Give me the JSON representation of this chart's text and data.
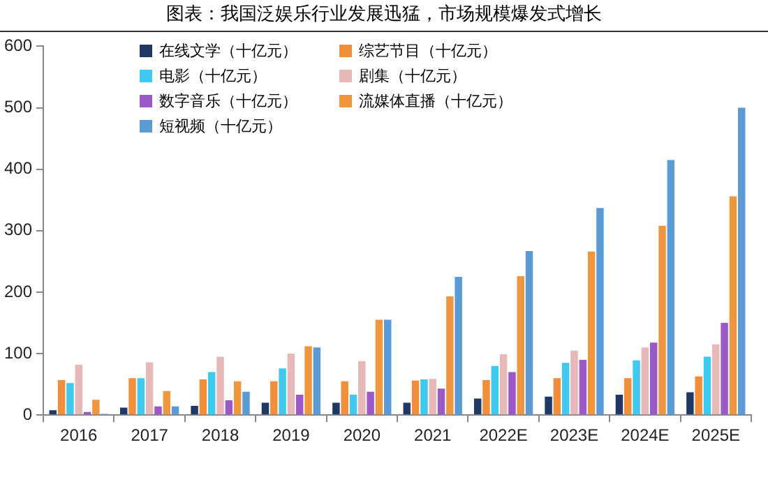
{
  "chart_data": {
    "type": "bar",
    "title": "图表：我国泛娱乐行业发展迅猛，市场规模爆发式增长",
    "categories": [
      "2016",
      "2017",
      "2018",
      "2019",
      "2020",
      "2021",
      "2022E",
      "2023E",
      "2024E",
      "2025E"
    ],
    "series": [
      {
        "name": "在线文学（十亿元）",
        "color": "#1f3864",
        "values": [
          8,
          12,
          15,
          20,
          20,
          20,
          27,
          30,
          33,
          37
        ]
      },
      {
        "name": "综艺节目（十亿元）",
        "color": "#f28e3a",
        "values": [
          57,
          60,
          58,
          55,
          55,
          56,
          57,
          60,
          60,
          63
        ]
      },
      {
        "name": "电影（十亿元）",
        "color": "#3fc8f0",
        "values": [
          52,
          60,
          70,
          76,
          33,
          58,
          80,
          85,
          89,
          95
        ]
      },
      {
        "name": "剧集（十亿元）",
        "color": "#e6b8b7",
        "values": [
          82,
          86,
          95,
          100,
          88,
          59,
          99,
          105,
          110,
          115
        ]
      },
      {
        "name": "数字音乐（十亿元）",
        "color": "#9b59c8",
        "values": [
          5,
          14,
          24,
          33,
          38,
          43,
          70,
          90,
          118,
          150
        ]
      },
      {
        "name": "流媒体直播（十亿元）",
        "color": "#f0963e",
        "values": [
          25,
          39,
          55,
          112,
          155,
          193,
          226,
          266,
          308,
          356
        ]
      },
      {
        "name": "短视频（十亿元）",
        "color": "#5b9bd5",
        "values": [
          2,
          14,
          38,
          110,
          155,
          225,
          267,
          337,
          415,
          500
        ]
      }
    ],
    "ylim": [
      0,
      600
    ],
    "yticks": [
      0,
      100,
      200,
      300,
      400,
      500,
      600
    ],
    "grid": false,
    "legend": "top"
  }
}
